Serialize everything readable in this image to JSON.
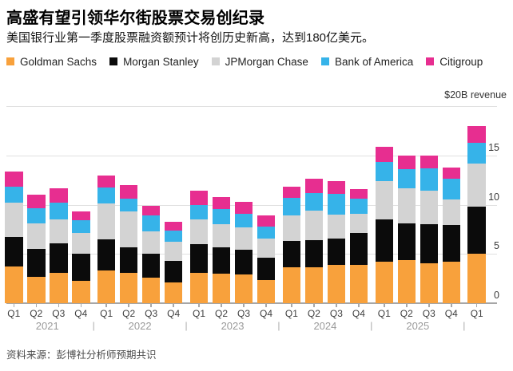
{
  "header": {
    "title": "高盛有望引领华尔街股票交易创纪录",
    "subtitle": "美国银行业第一季度股票融资额预计将创历史新高，达到180亿美元。"
  },
  "footer": {
    "source": "资料来源：彭博社分析师预期共识"
  },
  "chart_data": {
    "type": "bar",
    "stacked": true,
    "unit_label": "$20B revenue",
    "ylim": [
      0,
      20
    ],
    "yticks_right": [
      15,
      10,
      5,
      0
    ],
    "gridlines": [
      5,
      10,
      15,
      20
    ],
    "grid": true,
    "legend_position": "top",
    "year_separator": "|",
    "groups": [
      {
        "year": "2021",
        "quarters": [
          "Q1",
          "Q2",
          "Q3",
          "Q4"
        ]
      },
      {
        "year": "2022",
        "quarters": [
          "Q1",
          "Q2",
          "Q3",
          "Q4"
        ]
      },
      {
        "year": "2023",
        "quarters": [
          "Q1",
          "Q2",
          "Q3",
          "Q4"
        ]
      },
      {
        "year": "2024",
        "quarters": [
          "Q1",
          "Q2",
          "Q3",
          "Q4"
        ]
      },
      {
        "year": "2025",
        "quarters": [
          "Q1",
          "Q2",
          "Q3",
          "Q4"
        ]
      },
      {
        "year": "",
        "quarters": [
          "Q1"
        ]
      }
    ],
    "series": [
      {
        "name": "Goldman Sachs",
        "color": "#F8A13C",
        "values": [
          3.7,
          2.7,
          3.1,
          2.25,
          3.35,
          3.05,
          2.6,
          2.1,
          3.1,
          3.0,
          2.9,
          2.35,
          3.65,
          3.65,
          3.85,
          3.85,
          4.25,
          4.4,
          4.05,
          4.2,
          5.0
        ]
      },
      {
        "name": "Morgan Stanley",
        "color": "#0B0B0B",
        "values": [
          3.0,
          2.8,
          3.0,
          2.8,
          3.15,
          2.65,
          2.4,
          2.2,
          2.9,
          2.65,
          2.55,
          2.25,
          2.7,
          2.75,
          2.75,
          3.25,
          4.25,
          3.7,
          3.95,
          3.7,
          4.8
        ]
      },
      {
        "name": "JPMorgan Chase",
        "color": "#D3D3D3",
        "values": [
          3.5,
          2.6,
          2.4,
          2.05,
          3.65,
          3.65,
          2.25,
          1.95,
          2.5,
          2.35,
          2.25,
          1.95,
          2.55,
          3.0,
          2.4,
          2.0,
          3.9,
          3.55,
          3.45,
          2.6,
          4.4
        ]
      },
      {
        "name": "Bank of America",
        "color": "#36B3E9",
        "values": [
          1.65,
          1.5,
          1.7,
          1.3,
          1.6,
          1.3,
          1.65,
          1.15,
          1.5,
          1.55,
          1.4,
          1.25,
          1.8,
          1.8,
          2.1,
          1.5,
          1.95,
          1.95,
          2.2,
          2.1,
          2.1
        ]
      },
      {
        "name": "Citigroup",
        "color": "#E72E90",
        "values": [
          1.55,
          1.4,
          1.5,
          0.95,
          1.25,
          1.35,
          1.0,
          0.85,
          1.45,
          1.25,
          1.2,
          1.1,
          1.15,
          1.4,
          1.3,
          0.95,
          1.55,
          1.4,
          1.3,
          1.2,
          1.7
        ]
      }
    ]
  }
}
